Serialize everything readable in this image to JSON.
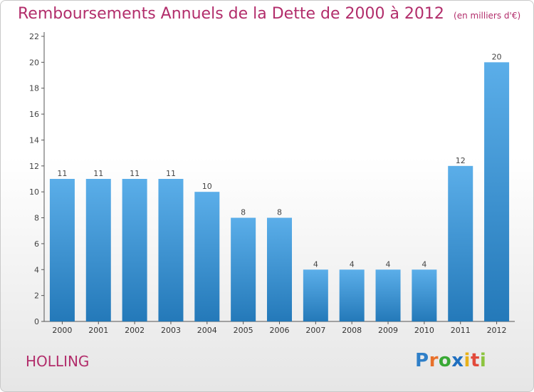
{
  "title": "Remboursements Annuels de la Dette de 2000 à 2012",
  "unit": "(en milliers d'€)",
  "town": "HOLLING",
  "logo": {
    "letters": [
      "P",
      "r",
      "o",
      "x",
      "i",
      "t",
      "i"
    ],
    "colors": [
      "#2f7fc8",
      "#e8702a",
      "#39a935",
      "#1f6fc0",
      "#e8b11a",
      "#e24a3b",
      "#8cc43f"
    ]
  },
  "colors": {
    "title": "#b22d6b",
    "bar_light": "#5baee9",
    "bar_dark": "#2479b9"
  },
  "chart_data": {
    "type": "bar",
    "categories": [
      "2000",
      "2001",
      "2002",
      "2003",
      "2004",
      "2005",
      "2006",
      "2007",
      "2008",
      "2009",
      "2010",
      "2011",
      "2012"
    ],
    "values": [
      11,
      11,
      11,
      11,
      10,
      8,
      8,
      4,
      4,
      4,
      4,
      12,
      20
    ],
    "data_labels": [
      "11",
      "11",
      "11",
      "11",
      "10",
      "8",
      "8",
      "4",
      "4",
      "4",
      "4",
      "12",
      "20"
    ],
    "title": "Remboursements Annuels de la Dette de 2000 à 2012",
    "xlabel": "",
    "ylabel": "",
    "ylim": [
      0,
      22
    ],
    "yticks": [
      0,
      2,
      4,
      6,
      8,
      10,
      12,
      14,
      16,
      18,
      20,
      22
    ],
    "grid": false,
    "legend": "none"
  }
}
